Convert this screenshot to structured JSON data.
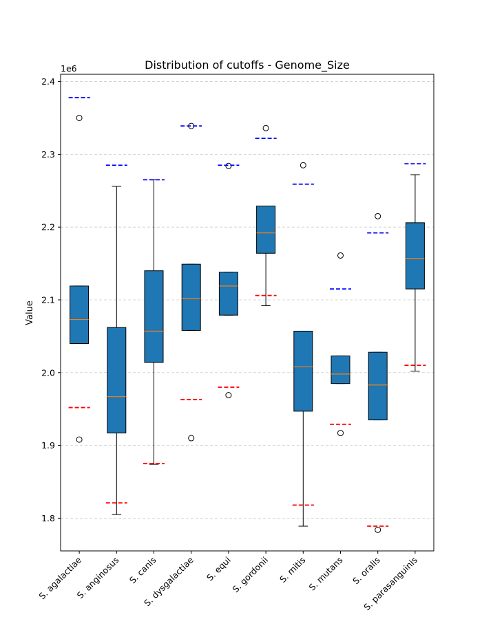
{
  "chart_data": {
    "type": "box",
    "title": "Distribution of cutoffs - Genome_Size",
    "xlabel": "",
    "ylabel": "Value",
    "y_offset_label": "1e6",
    "ylim": [
      1755000,
      2410000
    ],
    "yticks": [
      1800000,
      1900000,
      2000000,
      2100000,
      2200000,
      2300000,
      2400000
    ],
    "ytick_labels": [
      "1.8",
      "1.9",
      "2.0",
      "2.1",
      "2.2",
      "2.3",
      "2.4"
    ],
    "grid": "horizontal dashed",
    "colors": {
      "box_fill": "#1f77b4",
      "median": "#ff7f0e",
      "upper_cutoff": "#0000ff",
      "lower_cutoff": "#ff0000",
      "grid": "#cccccc"
    },
    "categories": [
      "S. agalactiae",
      "S. anginosus",
      "S. canis",
      "S. dysgalactiae",
      "S. equi",
      "S. gordonii",
      "S. mitis",
      "S. mutans",
      "S. oralis",
      "S. parasanguinis"
    ],
    "boxes": [
      {
        "q1": 2040000,
        "median": 2073000,
        "q3": 2119000,
        "whisker_low": 2040000,
        "whisker_high": 2119000,
        "outliers": [
          2350000,
          1908000
        ],
        "upper_cutoff": 2378000,
        "lower_cutoff": 1952000
      },
      {
        "q1": 1917000,
        "median": 1967000,
        "q3": 2062000,
        "whisker_low": 1805000,
        "whisker_high": 2256000,
        "outliers": [],
        "upper_cutoff": 2285000,
        "lower_cutoff": 1821000
      },
      {
        "q1": 2014000,
        "median": 2057000,
        "q3": 2140000,
        "whisker_low": 1874000,
        "whisker_high": 2265000,
        "outliers": [],
        "upper_cutoff": 2265000,
        "lower_cutoff": 1875000
      },
      {
        "q1": 2058000,
        "median": 2102000,
        "q3": 2149000,
        "whisker_low": 2058000,
        "whisker_high": 2149000,
        "outliers": [
          2339000,
          1910000
        ],
        "upper_cutoff": 2339000,
        "lower_cutoff": 1963000
      },
      {
        "q1": 2079000,
        "median": 2119000,
        "q3": 2138000,
        "whisker_low": 2079000,
        "whisker_high": 2138000,
        "outliers": [
          2284000,
          1969000
        ],
        "upper_cutoff": 2285000,
        "lower_cutoff": 1980000
      },
      {
        "q1": 2164000,
        "median": 2192000,
        "q3": 2229000,
        "whisker_low": 2092000,
        "whisker_high": 2229000,
        "outliers": [
          2336000
        ],
        "upper_cutoff": 2322000,
        "lower_cutoff": 2106000
      },
      {
        "q1": 1947000,
        "median": 2008000,
        "q3": 2057000,
        "whisker_low": 1789000,
        "whisker_high": 2057000,
        "outliers": [
          2285000
        ],
        "upper_cutoff": 2259000,
        "lower_cutoff": 1818000
      },
      {
        "q1": 1985000,
        "median": 1998000,
        "q3": 2023000,
        "whisker_low": 1985000,
        "whisker_high": 2023000,
        "outliers": [
          2161000,
          1917000
        ],
        "upper_cutoff": 2115000,
        "lower_cutoff": 1929000
      },
      {
        "q1": 1935000,
        "median": 1983000,
        "q3": 2028000,
        "whisker_low": 1935000,
        "whisker_high": 2028000,
        "outliers": [
          2215000,
          1784000
        ],
        "upper_cutoff": 2192000,
        "lower_cutoff": 1789000
      },
      {
        "q1": 2115000,
        "median": 2157000,
        "q3": 2206000,
        "whisker_low": 2002000,
        "whisker_high": 2272000,
        "outliers": [],
        "upper_cutoff": 2287000,
        "lower_cutoff": 2010000
      }
    ]
  }
}
